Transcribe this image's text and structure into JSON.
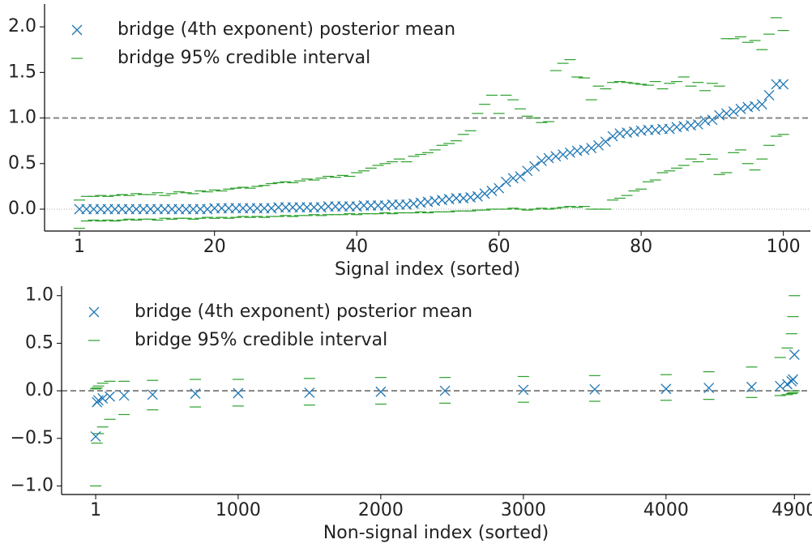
{
  "chart_data": [
    {
      "type": "scatter",
      "xlabel": "Signal index (sorted)",
      "xlim": [
        -3.9,
        103.8
      ],
      "ylim": [
        -0.24,
        2.25
      ],
      "xticks": [
        1,
        20,
        40,
        60,
        80,
        100
      ],
      "yticks": [
        {
          "value": 0,
          "label": "0.0"
        },
        0.5,
        {
          "value": 1,
          "label": "1.0"
        },
        1.5,
        {
          "value": 2,
          "label": "2.0"
        }
      ],
      "reference_line": 1,
      "zero_line": 0,
      "legend": "upper left",
      "x": [
        1,
        2,
        3,
        4,
        5,
        6,
        7,
        8,
        9,
        10,
        11,
        12,
        13,
        14,
        15,
        16,
        17,
        18,
        19,
        20,
        21,
        22,
        23,
        24,
        25,
        26,
        27,
        28,
        29,
        30,
        31,
        32,
        33,
        34,
        35,
        36,
        37,
        38,
        39,
        40,
        41,
        42,
        43,
        44,
        45,
        46,
        47,
        48,
        49,
        50,
        51,
        52,
        53,
        54,
        55,
        56,
        57,
        58,
        59,
        60,
        61,
        62,
        63,
        64,
        65,
        66,
        67,
        68,
        69,
        70,
        71,
        72,
        73,
        74,
        75,
        76,
        77,
        78,
        79,
        80,
        81,
        82,
        83,
        84,
        85,
        86,
        87,
        88,
        89,
        90,
        91,
        92,
        93,
        94,
        95,
        96,
        97,
        98,
        99,
        100
      ],
      "series": [
        {
          "name": "bridge (4th exponent) posterior mean",
          "color": "#1f77b4",
          "values": [
            0,
            0,
            0,
            0,
            0,
            0,
            0,
            0,
            0,
            0,
            0,
            0,
            0,
            0,
            0,
            0,
            0,
            0,
            0,
            0.01,
            0.01,
            0.01,
            0.01,
            0.01,
            0.01,
            0.01,
            0.01,
            0.01,
            0.02,
            0.02,
            0.02,
            0.02,
            0.02,
            0.02,
            0.02,
            0.03,
            0.03,
            0.03,
            0.03,
            0.03,
            0.04,
            0.04,
            0.04,
            0.04,
            0.05,
            0.05,
            0.05,
            0.06,
            0.07,
            0.08,
            0.09,
            0.1,
            0.11,
            0.12,
            0.12,
            0.13,
            0.14,
            0.17,
            0.2,
            0.23,
            0.3,
            0.34,
            0.36,
            0.42,
            0.47,
            0.53,
            0.56,
            0.58,
            0.6,
            0.62,
            0.64,
            0.65,
            0.67,
            0.7,
            0.74,
            0.8,
            0.83,
            0.84,
            0.85,
            0.86,
            0.87,
            0.87,
            0.88,
            0.88,
            0.9,
            0.91,
            0.92,
            0.93,
            0.97,
            0.98,
            1.03,
            1.05,
            1.07,
            1.1,
            1.12,
            1.13,
            1.15,
            1.25,
            1.37,
            1.37
          ]
        },
        {
          "name": "bridge 95% credible interval",
          "color": "#2ca02c",
          "lower": [
            -0.21,
            -0.13,
            -0.12,
            -0.13,
            -0.12,
            -0.13,
            -0.12,
            -0.11,
            -0.12,
            -0.11,
            -0.11,
            -0.12,
            -0.1,
            -0.11,
            -0.1,
            -0.1,
            -0.11,
            -0.1,
            -0.09,
            -0.1,
            -0.09,
            -0.1,
            -0.09,
            -0.08,
            -0.09,
            -0.08,
            -0.09,
            -0.08,
            -0.08,
            -0.07,
            -0.08,
            -0.07,
            -0.07,
            -0.06,
            -0.07,
            -0.06,
            -0.06,
            -0.06,
            -0.05,
            -0.06,
            -0.05,
            -0.05,
            -0.05,
            -0.04,
            -0.05,
            -0.04,
            -0.04,
            -0.04,
            -0.03,
            -0.04,
            -0.03,
            -0.03,
            -0.03,
            -0.02,
            -0.02,
            -0.02,
            -0.01,
            -0.01,
            0,
            0,
            0,
            0.01,
            0,
            -0.01,
            0,
            0.01,
            0,
            0.01,
            0.02,
            0.03,
            0.02,
            0.03,
            0,
            0,
            0,
            0.1,
            0.12,
            0.15,
            0.2,
            0.22,
            0.3,
            0.32,
            0.4,
            0.42,
            0.45,
            0.48,
            0.55,
            0.52,
            0.6,
            0.55,
            0.38,
            0.4,
            0.62,
            0.65,
            0.5,
            0.43,
            0.55,
            0.7,
            0.8,
            0.82
          ],
          "upper": [
            0.1,
            0.14,
            0.14,
            0.15,
            0.14,
            0.15,
            0.16,
            0.15,
            0.17,
            0.16,
            0.16,
            0.18,
            0.15,
            0.17,
            0.19,
            0.18,
            0.17,
            0.2,
            0.19,
            0.21,
            0.2,
            0.22,
            0.23,
            0.24,
            0.23,
            0.25,
            0.26,
            0.28,
            0.29,
            0.3,
            0.29,
            0.31,
            0.33,
            0.32,
            0.34,
            0.36,
            0.35,
            0.37,
            0.36,
            0.4,
            0.42,
            0.45,
            0.48,
            0.5,
            0.52,
            0.55,
            0.52,
            0.58,
            0.6,
            0.62,
            0.65,
            0.7,
            0.72,
            0.75,
            0.82,
            0.86,
            1.05,
            1.15,
            1.25,
            1.05,
            1.25,
            1.2,
            1.1,
            1.02,
            1.0,
            0.95,
            0.96,
            1.52,
            1.6,
            1.64,
            1.45,
            1.44,
            1.2,
            1.35,
            1.32,
            1.39,
            1.4,
            1.39,
            1.38,
            1.37,
            1.36,
            1.4,
            1.32,
            1.38,
            1.4,
            1.45,
            1.35,
            1.39,
            1.3,
            1.38,
            1.35,
            1.87,
            1.87,
            1.89,
            1.83,
            1.85,
            1.75,
            1.92,
            2.1,
            1.96
          ]
        }
      ]
    },
    {
      "type": "scatter",
      "xlabel": "Non-signal index (sorted)",
      "xlim": [
        -238,
        5012
      ],
      "ylim": [
        -1.09,
        1.1
      ],
      "xticks": [
        1,
        1000,
        2000,
        3000,
        4000,
        4900
      ],
      "yticks": [
        {
          "value": -1,
          "label": "−1.0"
        },
        {
          "value": -0.5,
          "label": "−0.5"
        },
        {
          "value": 0,
          "label": "0.0"
        },
        0.5,
        {
          "value": 1,
          "label": "1.0"
        }
      ],
      "reference_line": 0,
      "legend": "upper left",
      "x": [
        1,
        10,
        20,
        50,
        100,
        200,
        400,
        700,
        1000,
        1500,
        2000,
        2450,
        3000,
        3500,
        4000,
        4300,
        4600,
        4800,
        4850,
        4880,
        4890,
        4900
      ],
      "series": [
        {
          "name": "bridge (4th exponent) posterior mean",
          "color": "#1f77b4",
          "values": [
            -0.48,
            -0.12,
            -0.1,
            -0.08,
            -0.06,
            -0.05,
            -0.04,
            -0.03,
            -0.025,
            -0.02,
            -0.01,
            0,
            0.01,
            0.015,
            0.02,
            0.03,
            0.04,
            0.05,
            0.07,
            0.1,
            0.12,
            0.38
          ]
        },
        {
          "name": "bridge 95% credible interval",
          "color": "#2ca02c",
          "lower": [
            -1.0,
            -0.55,
            -0.45,
            -0.38,
            -0.3,
            -0.25,
            -0.2,
            -0.17,
            -0.16,
            -0.15,
            -0.14,
            -0.13,
            -0.12,
            -0.11,
            -0.1,
            -0.09,
            -0.07,
            -0.05,
            -0.04,
            -0.03,
            -0.02,
            0
          ],
          "upper": [
            0.02,
            0.03,
            0.05,
            0.08,
            0.1,
            0.1,
            0.11,
            0.12,
            0.12,
            0.13,
            0.14,
            0.14,
            0.15,
            0.16,
            0.17,
            0.2,
            0.25,
            0.35,
            0.45,
            0.6,
            0.78,
            1.0
          ]
        }
      ]
    }
  ]
}
